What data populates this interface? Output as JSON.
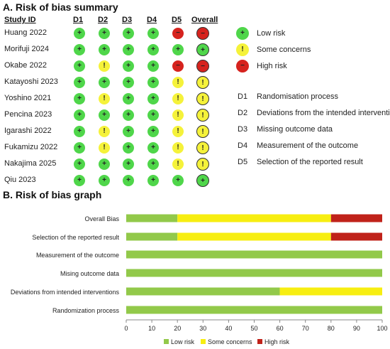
{
  "summary": {
    "title": "A. Risk of bias summary",
    "study_header": "Study ID",
    "domain_headers": [
      "D1",
      "D2",
      "D3",
      "D4",
      "D5",
      "Overall"
    ],
    "studies": [
      {
        "name": "Huang 2022",
        "judgements": [
          "low",
          "low",
          "low",
          "low",
          "high"
        ],
        "overall": "high"
      },
      {
        "name": "Morifuji 2024",
        "judgements": [
          "low",
          "low",
          "low",
          "low",
          "low"
        ],
        "overall": "low"
      },
      {
        "name": "Okabe 2022",
        "judgements": [
          "low",
          "some",
          "low",
          "low",
          "high"
        ],
        "overall": "high"
      },
      {
        "name": "Katayoshi 2023",
        "judgements": [
          "low",
          "low",
          "low",
          "low",
          "some"
        ],
        "overall": "some"
      },
      {
        "name": "Yoshino 2021",
        "judgements": [
          "low",
          "some",
          "low",
          "low",
          "some"
        ],
        "overall": "some"
      },
      {
        "name": "Pencina 2023",
        "judgements": [
          "low",
          "low",
          "low",
          "low",
          "some"
        ],
        "overall": "some"
      },
      {
        "name": "Igarashi 2022",
        "judgements": [
          "low",
          "some",
          "low",
          "low",
          "some"
        ],
        "overall": "some"
      },
      {
        "name": "Fukamizu 2022",
        "judgements": [
          "low",
          "some",
          "low",
          "low",
          "some"
        ],
        "overall": "some"
      },
      {
        "name": "Nakajima 2025",
        "judgements": [
          "low",
          "low",
          "low",
          "low",
          "some"
        ],
        "overall": "some"
      },
      {
        "name": "Qiu 2023",
        "judgements": [
          "low",
          "low",
          "low",
          "low",
          "low"
        ],
        "overall": "low"
      }
    ],
    "legend": [
      {
        "key": "low",
        "label": "Low risk"
      },
      {
        "key": "some",
        "label": "Some concerns"
      },
      {
        "key": "high",
        "label": "High risk"
      }
    ],
    "domains": [
      {
        "code": "D1",
        "label": "Randomisation process"
      },
      {
        "code": "D2",
        "label": "Deviations from the intended interventions"
      },
      {
        "code": "D3",
        "label": "Missing outcome data"
      },
      {
        "code": "D4",
        "label": "Measurement of the outcome"
      },
      {
        "code": "D5",
        "label": "Selection of the reported result"
      }
    ],
    "symbols": {
      "low": "+",
      "some": "!",
      "high": "−"
    },
    "colors": {
      "low": "#4fd64a",
      "some": "#f5f23a",
      "high": "#d6231e"
    }
  },
  "chart_data": {
    "type": "bar",
    "orientation": "horizontal",
    "stacked": true,
    "title": "B. Risk of bias graph",
    "categories": [
      "Overall Bias",
      "Selection of the reported result",
      "Measurement of the outcome",
      "Mising outcome data",
      "Deviations from intended interventions",
      "Randomization process"
    ],
    "series": [
      {
        "name": "Low risk",
        "color": "#92c94a",
        "values": [
          20,
          20,
          100,
          100,
          60,
          100
        ]
      },
      {
        "name": "Some concerns",
        "color": "#f7ee11",
        "values": [
          60,
          60,
          0,
          0,
          40,
          0
        ]
      },
      {
        "name": "High risk",
        "color": "#c0221a",
        "values": [
          20,
          20,
          0,
          0,
          0,
          0
        ]
      }
    ],
    "xlim": [
      0,
      100
    ],
    "xticks": [
      0,
      10,
      20,
      30,
      40,
      50,
      60,
      70,
      80,
      90,
      100
    ],
    "xlabel": "",
    "ylabel": "",
    "legend_position": "bottom"
  }
}
